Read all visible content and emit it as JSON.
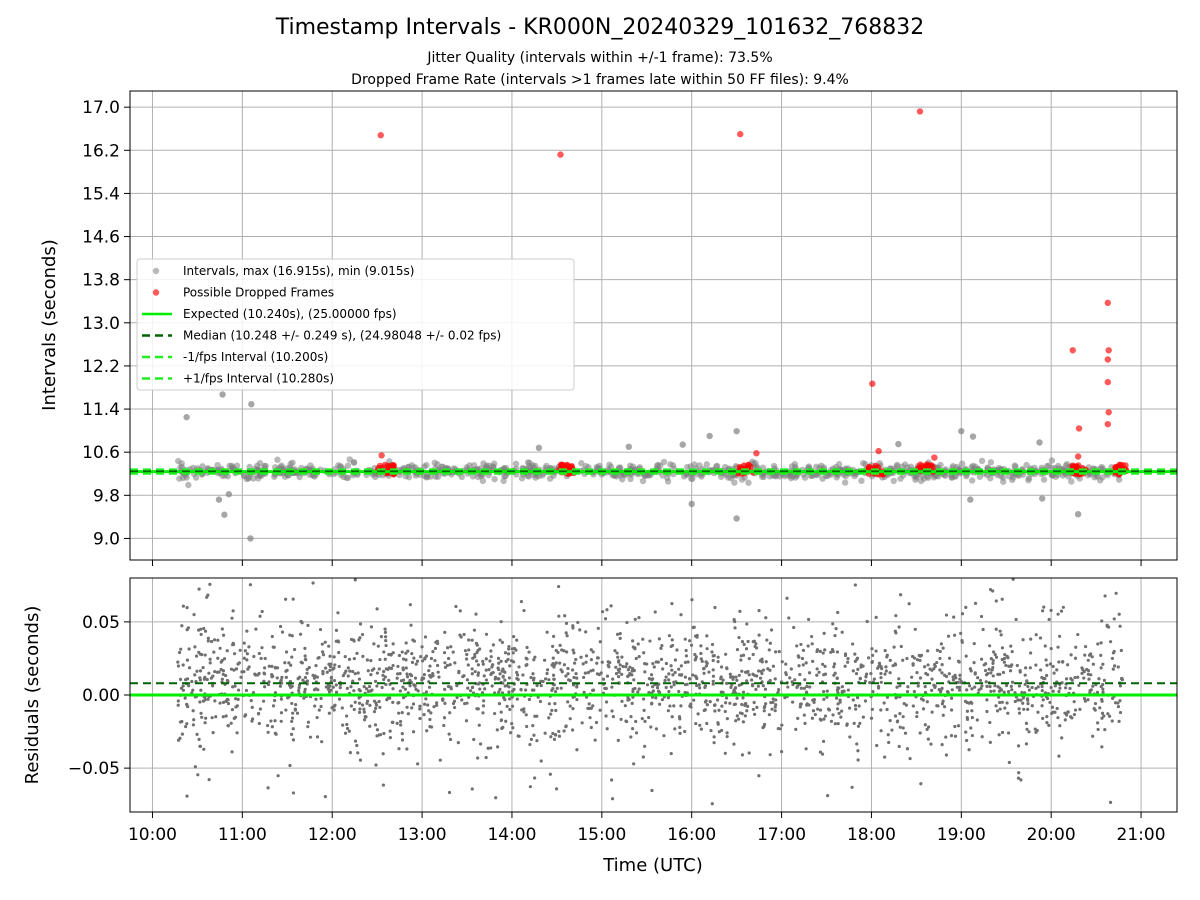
{
  "figure": {
    "title": "Timestamp Intervals - KR000N_20240329_101632_768832",
    "subtitle_1": "Jitter Quality (intervals within +/-1 frame): 73.5%",
    "subtitle_2": "Dropped Frame Rate (intervals >1 frames late within 50 FF files): 9.4%",
    "xlabel": "Time (UTC)"
  },
  "colors": {
    "intervals": "#808080",
    "dropped": "#ff0000",
    "expected": "#00ee00",
    "median": "#006400",
    "bound": "#22ee22",
    "residual": "#707070",
    "grid": "#b0b0b0"
  },
  "chart_data": [
    {
      "type": "scatter",
      "ylabel": "Intervals (seconds)",
      "xlim": [
        9.75,
        21.4
      ],
      "ylim": [
        8.6,
        17.3
      ],
      "x_ticks": [
        10,
        11,
        12,
        13,
        14,
        15,
        16,
        17,
        18,
        19,
        20,
        21
      ],
      "x_tick_labels": [
        "10:00",
        "11:00",
        "12:00",
        "13:00",
        "14:00",
        "15:00",
        "16:00",
        "17:00",
        "18:00",
        "19:00",
        "20:00",
        "21:00"
      ],
      "y_ticks": [
        9.0,
        9.8,
        10.6,
        11.4,
        12.2,
        13.0,
        13.8,
        14.6,
        15.4,
        16.2,
        17.0
      ],
      "y_tick_labels": [
        "9.0",
        "9.8",
        "10.6",
        "11.4",
        "12.2",
        "13.0",
        "13.8",
        "14.6",
        "15.4",
        "16.2",
        "17.0"
      ],
      "grid": true,
      "legend_position": "center-left",
      "legend": [
        {
          "label": "Intervals, max (16.915s), min (9.015s)",
          "kind": "marker",
          "color": "#808080"
        },
        {
          "label": "Possible Dropped Frames",
          "kind": "marker",
          "color": "#ff0000"
        },
        {
          "label": "Expected (10.240s), (25.00000 fps)",
          "kind": "line",
          "color": "#00ee00",
          "dash": "solid"
        },
        {
          "label": "Median (10.248 +/- 0.249 s), (24.98048 +/- 0.02 fps)",
          "kind": "line",
          "color": "#006400",
          "dash": "dashed"
        },
        {
          "label": "-1/fps Interval (10.200s)",
          "kind": "line",
          "color": "#22ee22",
          "dash": "dashed"
        },
        {
          "label": "+1/fps Interval (10.280s)",
          "kind": "line",
          "color": "#22ee22",
          "dash": "dashed"
        }
      ],
      "reference_lines": {
        "expected": 10.24,
        "median": 10.248,
        "minus_one_fps": 10.2,
        "plus_one_fps": 10.28
      },
      "x_range": [
        10.28,
        20.8
      ],
      "series": [
        {
          "name": "Intervals, max (16.915s), min (9.015s)",
          "note": "dense band of interval points centred on 10.24 s; isolated outliers listed",
          "center": 10.24,
          "spread": 0.13,
          "outliers": [
            {
              "x": 10.38,
              "y": 11.25
            },
            {
              "x": 10.78,
              "y": 11.67
            },
            {
              "x": 11.1,
              "y": 11.49
            },
            {
              "x": 11.09,
              "y": 9.0
            },
            {
              "x": 10.74,
              "y": 9.72
            },
            {
              "x": 10.8,
              "y": 9.44
            },
            {
              "x": 10.85,
              "y": 9.82
            },
            {
              "x": 16.5,
              "y": 9.37
            },
            {
              "x": 16.5,
              "y": 10.99
            },
            {
              "x": 16.2,
              "y": 10.9
            },
            {
              "x": 19.0,
              "y": 10.99
            },
            {
              "x": 19.13,
              "y": 10.89
            },
            {
              "x": 19.1,
              "y": 9.72
            },
            {
              "x": 20.3,
              "y": 9.45
            },
            {
              "x": 16.0,
              "y": 9.64
            },
            {
              "x": 15.3,
              "y": 10.7
            },
            {
              "x": 15.9,
              "y": 10.74
            },
            {
              "x": 18.3,
              "y": 10.75
            },
            {
              "x": 19.9,
              "y": 9.74
            },
            {
              "x": 19.87,
              "y": 10.78
            },
            {
              "x": 14.3,
              "y": 10.68
            }
          ]
        },
        {
          "name": "Possible Dropped Frames",
          "clusters": [
            12.6,
            14.6,
            16.6,
            18.05,
            18.6,
            20.3,
            20.75
          ],
          "cluster_y": 10.28,
          "points": [
            {
              "x": 12.54,
              "y": 16.48
            },
            {
              "x": 14.54,
              "y": 16.12
            },
            {
              "x": 16.54,
              "y": 16.5
            },
            {
              "x": 18.54,
              "y": 16.92
            },
            {
              "x": 18.01,
              "y": 11.87
            },
            {
              "x": 20.24,
              "y": 12.49
            },
            {
              "x": 20.63,
              "y": 13.37
            },
            {
              "x": 20.64,
              "y": 12.49
            },
            {
              "x": 20.63,
              "y": 12.32
            },
            {
              "x": 20.63,
              "y": 11.9
            },
            {
              "x": 20.64,
              "y": 11.34
            },
            {
              "x": 20.63,
              "y": 11.12
            },
            {
              "x": 20.31,
              "y": 11.04
            },
            {
              "x": 12.55,
              "y": 10.54
            },
            {
              "x": 16.72,
              "y": 10.58
            },
            {
              "x": 18.08,
              "y": 10.62
            },
            {
              "x": 18.7,
              "y": 10.5
            },
            {
              "x": 20.3,
              "y": 10.52
            }
          ]
        }
      ]
    },
    {
      "type": "scatter",
      "ylabel": "Residuals (seconds)",
      "xlim": [
        9.75,
        21.4
      ],
      "ylim": [
        -0.08,
        0.08
      ],
      "x_ticks": [
        10,
        11,
        12,
        13,
        14,
        15,
        16,
        17,
        18,
        19,
        20,
        21
      ],
      "x_tick_labels": [
        "10:00",
        "11:00",
        "12:00",
        "13:00",
        "14:00",
        "15:00",
        "16:00",
        "17:00",
        "18:00",
        "19:00",
        "20:00",
        "21:00"
      ],
      "y_ticks": [
        -0.05,
        0.0,
        0.05
      ],
      "y_tick_labels": [
        "−0.05",
        "0.00",
        "0.05"
      ],
      "grid": true,
      "reference_lines": {
        "zero": 0.0,
        "median_offset": 0.008
      },
      "series": [
        {
          "name": "Residuals",
          "note": "residual points scattered around ~0.008 s, spread about ±0.03 s, clipped at ±0.08",
          "center": 0.008,
          "spread": 0.022,
          "x_range": [
            10.28,
            20.8
          ]
        }
      ]
    }
  ]
}
